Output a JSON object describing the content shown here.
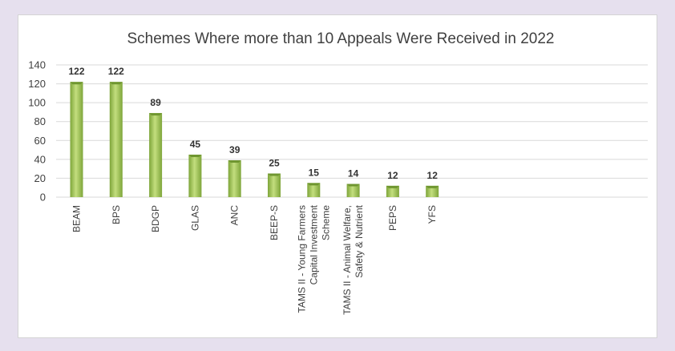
{
  "chart_data": {
    "type": "bar",
    "title": "Schemes Where more than 10 Appeals Were Received in 2022",
    "xlabel": "",
    "ylabel": "",
    "ylim": [
      0,
      140
    ],
    "yticks": [
      0,
      20,
      40,
      60,
      80,
      100,
      120,
      140
    ],
    "grid": true,
    "legend": "none",
    "categories": [
      [
        "BEAM"
      ],
      [
        "BPS"
      ],
      [
        "BDGP"
      ],
      [
        "GLAS"
      ],
      [
        "ANC"
      ],
      [
        "BEEP-S"
      ],
      [
        "TAMS II - Young Farmers",
        "Capital Investment",
        "Scheme"
      ],
      [
        "TAMS II - Animal Welfare,",
        "Safety & Nutrient"
      ],
      [
        "PEPS"
      ],
      [
        "YFS"
      ]
    ],
    "values": [
      122,
      122,
      89,
      45,
      39,
      25,
      15,
      14,
      12,
      12
    ],
    "colors": {
      "bar_light": "#c3de7e",
      "bar_dark": "#7ea53a",
      "bar_top": "#6f9630"
    }
  }
}
